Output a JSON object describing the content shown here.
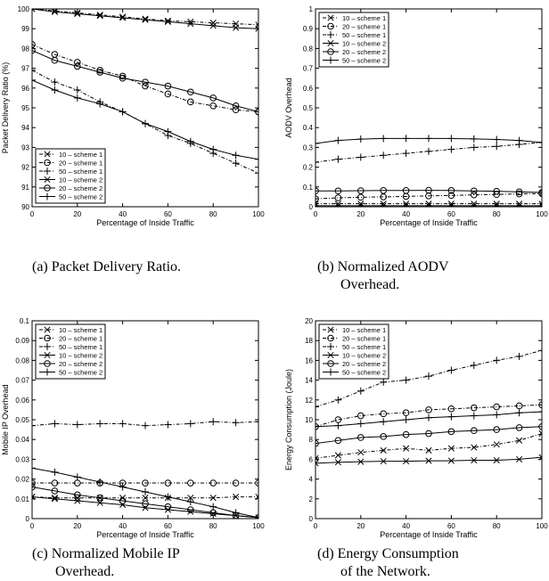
{
  "captions": {
    "a": "(a) Packet Delivery Ratio.",
    "b_line1": "(b) Normalized AODV",
    "b_line2": "Overhead.",
    "c_line1": "(c) Normalized Mobile IP",
    "c_line2": "Overhead.",
    "d_line1": "(d) Energy Consumption",
    "d_line2": "of the Network."
  },
  "chart_data": [
    {
      "id": "a",
      "type": "line",
      "title": "",
      "xlabel": "Percentage of Inside Traffic",
      "ylabel": "Packet Delivery Ratio (%)",
      "xlim": [
        0,
        100
      ],
      "ylim": [
        90,
        100
      ],
      "xticks": [
        0,
        20,
        40,
        60,
        80,
        100
      ],
      "yticks": [
        90,
        91,
        92,
        93,
        94,
        95,
        96,
        97,
        98,
        99,
        100
      ],
      "legend_position": "bottom-left",
      "grid": false,
      "x": [
        0,
        10,
        20,
        30,
        40,
        50,
        60,
        70,
        80,
        90,
        100
      ],
      "series": [
        {
          "name": "10 – scheme 1",
          "marker": "x",
          "dash": true,
          "values": [
            100,
            99.9,
            99.8,
            99.7,
            99.6,
            99.5,
            99.4,
            99.35,
            99.3,
            99.25,
            99.2
          ]
        },
        {
          "name": "20 – scheme 1",
          "marker": "o",
          "dash": true,
          "values": [
            98.2,
            97.7,
            97.3,
            96.9,
            96.6,
            96.1,
            95.7,
            95.3,
            95.1,
            94.9,
            94.8
          ]
        },
        {
          "name": "50 – scheme 1",
          "marker": "+",
          "dash": true,
          "values": [
            96.9,
            96.3,
            95.9,
            95.3,
            94.8,
            94.2,
            93.6,
            93.2,
            92.7,
            92.2,
            91.7
          ]
        },
        {
          "name": "10 – scheme 2",
          "marker": "x",
          "dash": false,
          "values": [
            100,
            99.85,
            99.75,
            99.65,
            99.55,
            99.45,
            99.35,
            99.25,
            99.15,
            99.05,
            99.0
          ]
        },
        {
          "name": "20 – scheme 2",
          "marker": "o",
          "dash": false,
          "values": [
            97.9,
            97.4,
            97.1,
            96.8,
            96.5,
            96.3,
            96.1,
            95.8,
            95.5,
            95.1,
            94.8
          ]
        },
        {
          "name": "50 – scheme 2",
          "marker": "+",
          "dash": false,
          "values": [
            96.4,
            95.9,
            95.5,
            95.2,
            94.8,
            94.2,
            93.8,
            93.3,
            92.9,
            92.6,
            92.4
          ]
        }
      ]
    },
    {
      "id": "b",
      "type": "line",
      "title": "",
      "xlabel": "Percentage of Inside Traffic",
      "ylabel": "AODV Overhead",
      "xlim": [
        0,
        100
      ],
      "ylim": [
        0,
        1
      ],
      "xticks": [
        0,
        20,
        40,
        60,
        80,
        100
      ],
      "yticks": [
        0,
        0.1,
        0.2,
        0.3,
        0.4,
        0.5,
        0.6,
        0.7,
        0.8,
        0.9,
        1
      ],
      "legend_position": "top-left",
      "grid": false,
      "x": [
        0,
        10,
        20,
        30,
        40,
        50,
        60,
        70,
        80,
        90,
        100
      ],
      "series": [
        {
          "name": "10 – scheme 1",
          "marker": "x",
          "dash": true,
          "values": [
            0.015,
            0.015,
            0.015,
            0.015,
            0.015,
            0.015,
            0.015,
            0.015,
            0.015,
            0.015,
            0.015
          ]
        },
        {
          "name": "20 – scheme 1",
          "marker": "o",
          "dash": true,
          "values": [
            0.04,
            0.045,
            0.048,
            0.05,
            0.052,
            0.055,
            0.057,
            0.06,
            0.062,
            0.065,
            0.067
          ]
        },
        {
          "name": "50 – scheme 1",
          "marker": "+",
          "dash": true,
          "values": [
            0.225,
            0.24,
            0.25,
            0.26,
            0.27,
            0.28,
            0.29,
            0.3,
            0.305,
            0.315,
            0.325
          ]
        },
        {
          "name": "10 – scheme 2",
          "marker": "x",
          "dash": false,
          "values": [
            0.005,
            0.005,
            0.005,
            0.005,
            0.005,
            0.005,
            0.005,
            0.005,
            0.005,
            0.005,
            0.005
          ]
        },
        {
          "name": "20 – scheme 2",
          "marker": "o",
          "dash": false,
          "values": [
            0.08,
            0.08,
            0.081,
            0.082,
            0.082,
            0.083,
            0.082,
            0.08,
            0.078,
            0.075,
            0.072
          ]
        },
        {
          "name": "50 – scheme 2",
          "marker": "+",
          "dash": false,
          "values": [
            0.32,
            0.335,
            0.342,
            0.345,
            0.345,
            0.345,
            0.345,
            0.343,
            0.34,
            0.335,
            0.325
          ]
        }
      ]
    },
    {
      "id": "c",
      "type": "line",
      "title": "",
      "xlabel": "Percentage of Inside Traffic",
      "ylabel": "Mobile IP Overhead",
      "xlim": [
        0,
        100
      ],
      "ylim": [
        0,
        0.1
      ],
      "xticks": [
        0,
        20,
        40,
        60,
        80,
        100
      ],
      "yticks": [
        0,
        0.01,
        0.02,
        0.03,
        0.04,
        0.05,
        0.06,
        0.07,
        0.08,
        0.09,
        0.1
      ],
      "legend_position": "top-right",
      "grid": false,
      "x": [
        0,
        10,
        20,
        30,
        40,
        50,
        60,
        70,
        80,
        90,
        100
      ],
      "series": [
        {
          "name": "10 – scheme 1",
          "marker": "x",
          "dash": true,
          "values": [
            0.011,
            0.0105,
            0.0105,
            0.0105,
            0.0105,
            0.0105,
            0.0105,
            0.0105,
            0.0105,
            0.011,
            0.011
          ]
        },
        {
          "name": "20 – scheme 1",
          "marker": "o",
          "dash": true,
          "values": [
            0.018,
            0.018,
            0.018,
            0.018,
            0.018,
            0.018,
            0.018,
            0.018,
            0.018,
            0.018,
            0.018
          ]
        },
        {
          "name": "50 – scheme 1",
          "marker": "+",
          "dash": true,
          "values": [
            0.047,
            0.048,
            0.0475,
            0.048,
            0.048,
            0.047,
            0.0475,
            0.048,
            0.049,
            0.0485,
            0.049
          ]
        },
        {
          "name": "10 – scheme 2",
          "marker": "x",
          "dash": false,
          "values": [
            0.011,
            0.01,
            0.009,
            0.008,
            0.007,
            0.0055,
            0.0045,
            0.0035,
            0.0025,
            0.0015,
            0.0005
          ]
        },
        {
          "name": "20 – scheme 2",
          "marker": "o",
          "dash": false,
          "values": [
            0.016,
            0.014,
            0.012,
            0.0105,
            0.009,
            0.0075,
            0.006,
            0.0045,
            0.003,
            0.0015,
            0.0005
          ]
        },
        {
          "name": "50 – scheme 2",
          "marker": "+",
          "dash": false,
          "values": [
            0.0255,
            0.0235,
            0.021,
            0.0185,
            0.016,
            0.0135,
            0.011,
            0.0085,
            0.006,
            0.003,
            0.0005
          ]
        }
      ]
    },
    {
      "id": "d",
      "type": "line",
      "title": "",
      "xlabel": "Percentage of Inside Traffic",
      "ylabel": "Energy Consumption (Joule)",
      "xlim": [
        0,
        100
      ],
      "ylim": [
        0,
        20
      ],
      "xticks": [
        0,
        20,
        40,
        60,
        80,
        100
      ],
      "yticks": [
        0,
        2,
        4,
        6,
        8,
        10,
        12,
        14,
        16,
        18,
        20
      ],
      "legend_position": "top-left",
      "grid": false,
      "x": [
        0,
        10,
        20,
        30,
        40,
        50,
        60,
        70,
        80,
        90,
        100
      ],
      "series": [
        {
          "name": "10 – scheme 1",
          "marker": "x",
          "dash": true,
          "values": [
            6.1,
            6.4,
            6.7,
            6.9,
            7.1,
            6.9,
            7.1,
            7.2,
            7.5,
            7.9,
            8.6
          ]
        },
        {
          "name": "20 – scheme 1",
          "marker": "o",
          "dash": true,
          "values": [
            9.3,
            10.0,
            10.4,
            10.6,
            10.7,
            11.0,
            11.1,
            11.2,
            11.3,
            11.4,
            11.5
          ]
        },
        {
          "name": "50 – scheme 1",
          "marker": "+",
          "dash": true,
          "values": [
            11.3,
            12.0,
            12.9,
            13.8,
            14.0,
            14.4,
            15.0,
            15.5,
            16.0,
            16.4,
            17.0
          ]
        },
        {
          "name": "10 – scheme 2",
          "marker": "x",
          "dash": false,
          "values": [
            5.6,
            5.7,
            5.75,
            5.8,
            5.8,
            5.85,
            5.85,
            5.9,
            5.9,
            6.0,
            6.2
          ]
        },
        {
          "name": "20 – scheme 2",
          "marker": "o",
          "dash": false,
          "values": [
            7.6,
            7.9,
            8.2,
            8.3,
            8.5,
            8.6,
            8.8,
            8.9,
            9.0,
            9.2,
            9.3
          ]
        },
        {
          "name": "50 – scheme 2",
          "marker": "+",
          "dash": false,
          "values": [
            9.3,
            9.4,
            9.6,
            9.8,
            10.0,
            10.2,
            10.3,
            10.4,
            10.5,
            10.7,
            10.8
          ]
        }
      ]
    }
  ]
}
